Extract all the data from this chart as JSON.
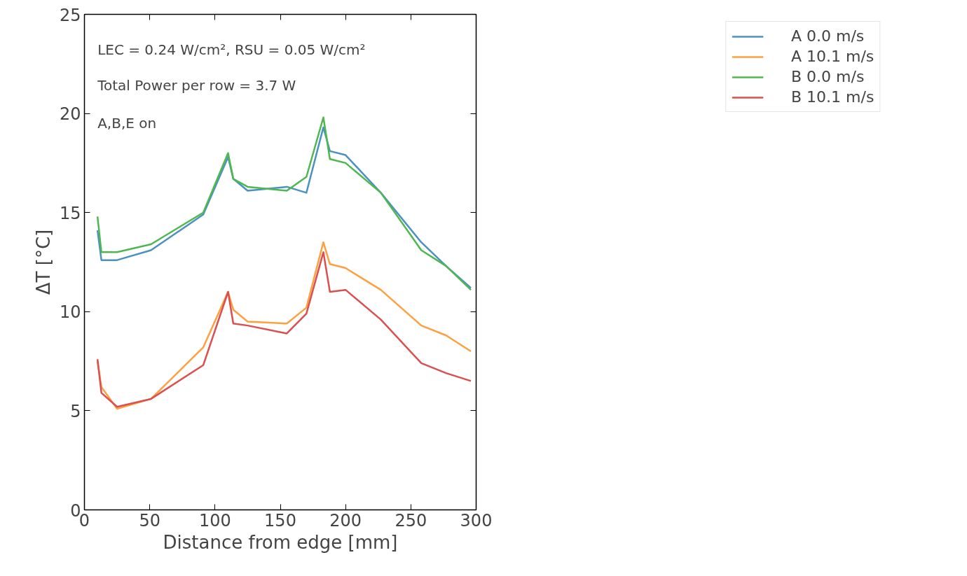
{
  "chart_data": {
    "type": "line",
    "xlabel": "Distance from edge [mm]",
    "ylabel": "ΔT [°C]",
    "annotations": [
      "LEC = 0.24 W/cm², RSU = 0.05 W/cm²",
      "Total Power per row = 3.7 W",
      "A,B,E on"
    ],
    "x": [
      10,
      13,
      25,
      51,
      91,
      110,
      114,
      125,
      155,
      170,
      183,
      188,
      200,
      227,
      258,
      277,
      296
    ],
    "series": [
      {
        "name": "A 0.0 m/s",
        "color": "#4b92c3",
        "values": [
          14.1,
          12.6,
          12.6,
          13.1,
          14.9,
          17.8,
          16.7,
          16.1,
          16.3,
          16.0,
          19.3,
          18.1,
          17.9,
          16.0,
          13.5,
          12.3,
          11.2
        ]
      },
      {
        "name": "A 10.1 m/s",
        "color": "#ffa040",
        "values": [
          7.5,
          6.2,
          5.1,
          5.6,
          8.2,
          11.0,
          10.1,
          9.5,
          9.4,
          10.2,
          13.5,
          12.4,
          12.2,
          11.1,
          9.3,
          8.8,
          8.0
        ]
      },
      {
        "name": "B 0.0 m/s",
        "color": "#4fb74f",
        "values": [
          14.8,
          13.0,
          13.0,
          13.4,
          15.0,
          18.0,
          16.7,
          16.3,
          16.1,
          16.8,
          19.8,
          17.7,
          17.5,
          16.0,
          13.1,
          12.3,
          11.1
        ]
      },
      {
        "name": "B 10.1 m/s",
        "color": "#da4f4f",
        "values": [
          7.6,
          5.9,
          5.2,
          5.6,
          7.3,
          11.0,
          9.4,
          9.3,
          8.9,
          9.9,
          13.0,
          11.0,
          11.1,
          9.6,
          7.4,
          6.9,
          6.5
        ]
      }
    ],
    "xlim": [
      0,
      300
    ],
    "xticks": [
      0,
      50,
      100,
      150,
      200,
      250,
      300
    ],
    "ylim": [
      0,
      25
    ],
    "yticks": [
      0,
      5,
      10,
      15,
      20,
      25
    ],
    "grid": false,
    "legend": "top right",
    "marker": "none",
    "line_style": "solid"
  }
}
